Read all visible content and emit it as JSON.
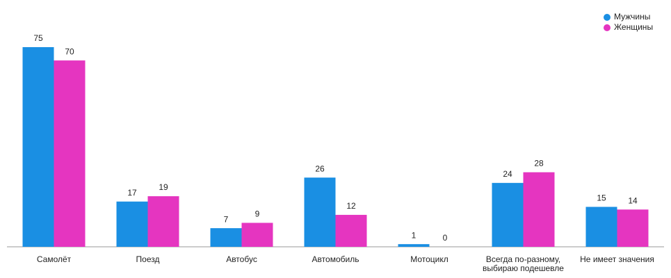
{
  "chart_data": {
    "type": "bar",
    "categories": [
      "Самолёт",
      "Поезд",
      "Автобус",
      "Автомобиль",
      "Мотоцикл",
      "Всегда по-разному,\nвыбираю подешевле",
      "Не имеет значения"
    ],
    "series": [
      {
        "name": "Мужчины",
        "color": "#1a8fe3",
        "values": [
          75,
          17,
          7,
          26,
          1,
          24,
          15
        ]
      },
      {
        "name": "Женщины",
        "color": "#e535c0",
        "values": [
          70,
          19,
          9,
          12,
          0,
          28,
          14
        ]
      }
    ],
    "legend": "top-right"
  }
}
